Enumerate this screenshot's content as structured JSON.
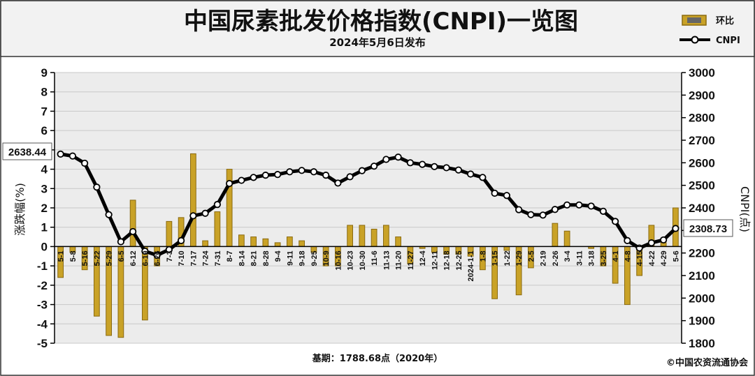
{
  "header": {
    "title": "中国尿素批发价格指数(CNPI)一览图",
    "subtitle": "2024年5月6日发布"
  },
  "legend": [
    {
      "label": "环比",
      "kind": "bar"
    },
    {
      "label": "CNPI",
      "kind": "line"
    }
  ],
  "footer": {
    "base": "基期：1788.68点（2020年）",
    "copyright": "©中国农资流通协会"
  },
  "callouts": {
    "first": "2638.44",
    "last": "2308.73"
  },
  "colors": {
    "bar_fill": "#c9a227",
    "bar_edge": "#8a6a10",
    "line": "#000000",
    "grid": "#c8c8c8",
    "plot_bg": "#ececec"
  },
  "chart_data": {
    "type": "bar+line",
    "ylabel_left": "涨跌幅(%)",
    "ylabel_right": "CNPI(点)",
    "ylim_left": [
      -5,
      9
    ],
    "ylim_right": [
      1800,
      3000
    ],
    "yticks_left": [
      -5,
      -4,
      -3,
      -2,
      -1,
      0,
      1,
      2,
      3,
      4,
      5,
      6,
      7,
      8,
      9
    ],
    "yticks_right": [
      1800,
      1900,
      2000,
      2100,
      2200,
      2300,
      2400,
      2500,
      2600,
      2700,
      2800,
      2900,
      3000
    ],
    "grid": true,
    "categories": [
      "5-1",
      "5-8",
      "5-16",
      "5-22",
      "5-29",
      "6-5",
      "6-12",
      "6-19",
      "6-26",
      "7-3",
      "7-10",
      "7-17",
      "7-24",
      "7-31",
      "8-7",
      "8-14",
      "8-21",
      "8-28",
      "9-4",
      "9-11",
      "9-18",
      "9-25",
      "10-9",
      "10-16",
      "10-23",
      "10-30",
      "11-6",
      "11-13",
      "11-20",
      "11-27",
      "12-4",
      "12-11",
      "12-18",
      "12-25",
      "2024-1-1",
      "1-8",
      "1-15",
      "1-22",
      "1-29",
      "2-5",
      "2-19",
      "2-26",
      "3-4",
      "3-11",
      "3-18",
      "3-25",
      "4-1",
      "4-8",
      "4-15",
      "4-22",
      "4-29",
      "5-6"
    ],
    "series": [
      {
        "name": "环比",
        "type": "bar",
        "values": [
          -1.6,
          -0.3,
          -1.2,
          -3.6,
          -4.6,
          -4.7,
          2.4,
          -3.8,
          -1.0,
          1.3,
          1.5,
          4.8,
          0.3,
          1.8,
          4.0,
          0.6,
          0.5,
          0.4,
          0.2,
          0.5,
          0.3,
          -0.3,
          -1.0,
          -1.0,
          1.1,
          1.1,
          0.9,
          1.1,
          0.5,
          -0.9,
          -0.1,
          -0.3,
          -0.4,
          -0.4,
          -0.5,
          -1.2,
          -2.7,
          -0.2,
          -2.5,
          -1.1,
          0.0,
          1.2,
          0.8,
          0.0,
          -0.1,
          -1.0,
          -1.9,
          -3.0,
          -1.5,
          1.1,
          0.2,
          2.0
        ]
      },
      {
        "name": "CNPI",
        "type": "line",
        "values": [
          2638.44,
          2630,
          2598,
          2492,
          2370,
          2250,
          2295,
          2208,
          2190,
          2215,
          2255,
          2365,
          2376,
          2415,
          2508,
          2522,
          2535,
          2545,
          2548,
          2560,
          2566,
          2560,
          2545,
          2510,
          2538,
          2565,
          2585,
          2615,
          2625,
          2600,
          2593,
          2583,
          2578,
          2568,
          2550,
          2535,
          2465,
          2455,
          2392,
          2370,
          2368,
          2393,
          2413,
          2413,
          2408,
          2385,
          2340,
          2255,
          2222,
          2245,
          2258,
          2308.73
        ]
      }
    ]
  }
}
